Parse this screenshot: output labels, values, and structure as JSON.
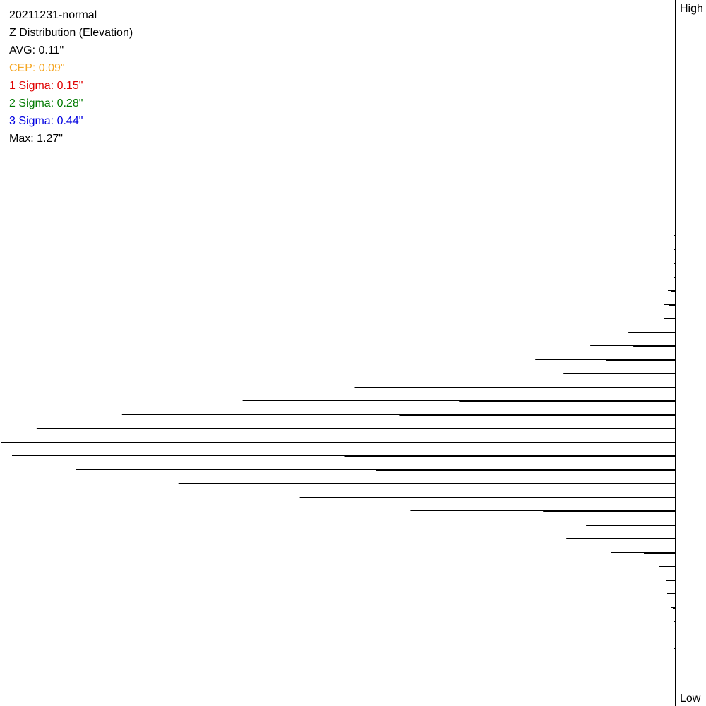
{
  "header": {
    "title": "20211231-normal",
    "subtitle": "Z Distribution (Elevation)",
    "avg": "AVG: 0.11\"",
    "cep": "CEP: 0.09\"",
    "sigma1": "1 Sigma: 0.15\"",
    "sigma2": "2 Sigma: 0.28\"",
    "sigma3": "3 Sigma: 0.44\"",
    "max": "Max: 1.27\""
  },
  "colors": {
    "text": "#000000",
    "cep": "#f5a623",
    "sigma1": "#e00000",
    "sigma2": "#007a00",
    "sigma3": "#0000e0"
  },
  "axis": {
    "high_label": "High",
    "low_label": "Low"
  },
  "chart_data": {
    "type": "bar",
    "orientation": "horizontal",
    "series": [
      {
        "values": [
          1,
          1,
          2,
          3,
          10,
          16,
          37,
          66,
          120,
          198,
          318,
          454,
          613,
          784,
          905,
          956,
          940,
          849,
          704,
          532,
          375,
          253,
          154,
          91,
          44,
          27,
          11,
          6,
          3,
          1,
          1
        ]
      },
      {
        "values": [
          0,
          0,
          1,
          2,
          5,
          8,
          16,
          33,
          59,
          98,
          158,
          226,
          306,
          391,
          451,
          477,
          469,
          424,
          351,
          265,
          187,
          126,
          75,
          44,
          22,
          13,
          5,
          3,
          1,
          0,
          0
        ]
      }
    ]
  }
}
